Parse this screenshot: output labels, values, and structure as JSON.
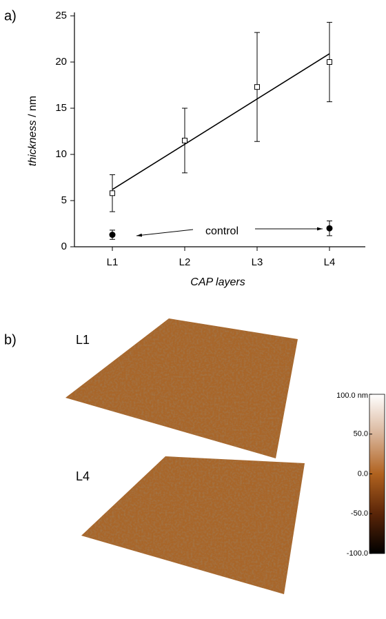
{
  "panel_labels": [
    "a)",
    "b)"
  ],
  "chart_data": {
    "type": "errorbar",
    "y_label": {
      "italic": "thickness",
      "rest": " / nm"
    },
    "x_label": "CAP layers",
    "categories": [
      "L1",
      "L2",
      "L3",
      "L4"
    ],
    "ylim": [
      0,
      25
    ],
    "yticks": [
      0,
      5,
      10,
      15,
      20,
      25
    ],
    "series": [
      {
        "marker": "open-square",
        "values": [
          5.8,
          11.5,
          17.3,
          20
        ],
        "errors": [
          2,
          3.5,
          5.9,
          4.3
        ]
      },
      {
        "marker": "filled-circle",
        "values": [
          1.3,
          null,
          null,
          2.0
        ],
        "errors": [
          0.5,
          null,
          null,
          0.8
        ]
      }
    ],
    "fit_line": {
      "start": 6.2,
      "end": 20.9
    },
    "annotation": "control"
  },
  "afm": {
    "images": [
      "L1",
      "L4"
    ],
    "colorbar": {
      "lim": [
        -100,
        100
      ],
      "ticks": [
        {
          "value": 100,
          "label": "100.0 nm"
        },
        {
          "value": 50,
          "label": "50.0"
        },
        {
          "value": 0,
          "label": "0.0"
        },
        {
          "value": -50,
          "label": "-50.0"
        },
        {
          "value": -100,
          "label": "-100.0"
        }
      ]
    }
  }
}
